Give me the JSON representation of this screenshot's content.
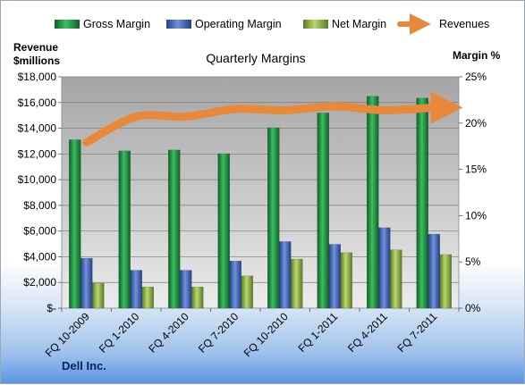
{
  "chart_data": {
    "type": "bar",
    "title": "Quarterly Margins",
    "categories": [
      "FQ 10-2009",
      "FQ 1-2010",
      "FQ 4-2010",
      "FQ 7-2010",
      "FQ 10-2010",
      "FQ 1-2011",
      "FQ 4-2011",
      "FQ 7-2011"
    ],
    "series": [
      {
        "name": "Gross Margin",
        "axis": "right",
        "color": "#1f8a3c",
        "values": [
          18.2,
          17.0,
          17.1,
          16.7,
          19.5,
          21.1,
          22.9,
          22.7
        ]
      },
      {
        "name": "Operating Margin",
        "axis": "right",
        "color": "#3f63b4",
        "values": [
          5.4,
          4.1,
          4.1,
          5.1,
          7.2,
          6.9,
          8.7,
          8.0
        ]
      },
      {
        "name": "Net Margin",
        "axis": "right",
        "color": "#86a83c",
        "values": [
          2.7,
          2.3,
          2.3,
          3.5,
          5.3,
          6.0,
          6.3,
          5.8
        ]
      },
      {
        "name": "Revenues",
        "type": "line",
        "axis": "left",
        "color": "#e8883a",
        "values": [
          12900,
          14900,
          14900,
          15500,
          15400,
          15700,
          15400,
          15600
        ]
      }
    ],
    "y_left": {
      "label_line1": "Revenue",
      "label_line2": "$millions",
      "lim": [
        0,
        18000
      ],
      "ticks": [
        "$-",
        "$2,000",
        "$4,000",
        "$6,000",
        "$8,000",
        "$10,000",
        "$12,000",
        "$14,000",
        "$16,000",
        "$18,000"
      ]
    },
    "y_right": {
      "label": "Margin %",
      "lim": [
        0,
        25
      ],
      "ticks": [
        "0%",
        "5%",
        "10%",
        "15%",
        "20%",
        "25%"
      ]
    },
    "grid": true,
    "legend_position": "top"
  },
  "footer": {
    "company": "Dell Inc."
  }
}
